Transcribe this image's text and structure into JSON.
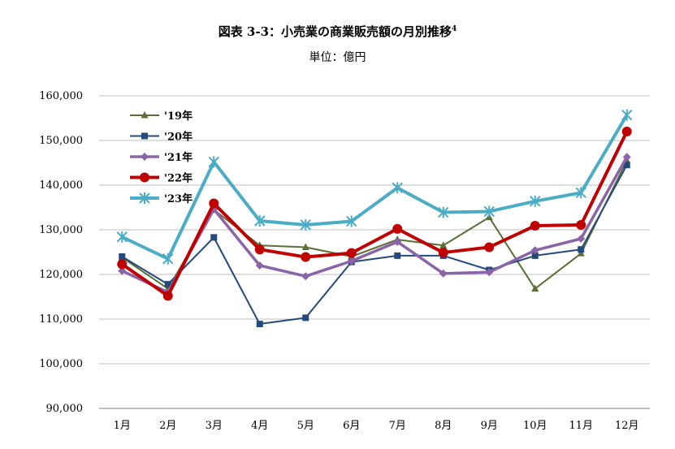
{
  "title": "図表 3-3：小売業の商業販売額の月別推移",
  "title_footnote": "4",
  "subtitle": "単位：億円",
  "chart_data": {
    "type": "line",
    "title": "図表 3-3：小売業の商業販売額の月別推移",
    "unit": "単位：億円",
    "categories": [
      "1月",
      "2月",
      "3月",
      "4月",
      "5月",
      "6月",
      "7月",
      "8月",
      "9月",
      "10月",
      "11月",
      "12月"
    ],
    "ylim": [
      90000,
      160000
    ],
    "yticks": [
      90000,
      100000,
      110000,
      120000,
      130000,
      140000,
      150000,
      160000
    ],
    "ytick_labels": [
      "90,000",
      "100,000",
      "110,000",
      "120,000",
      "130,000",
      "140,000",
      "150,000",
      "160,000"
    ],
    "grid": true,
    "legend_position": "top-left",
    "series": [
      {
        "name": "'19年",
        "color": "#5a6e35",
        "marker": "triangle",
        "values": [
          123800,
          116800,
          134500,
          126500,
          126100,
          124000,
          127800,
          126500,
          132800,
          116800,
          124700,
          145500
        ]
      },
      {
        "name": "'20年",
        "color": "#244a7c",
        "marker": "square",
        "values": [
          124000,
          117800,
          128300,
          108900,
          110300,
          122800,
          124200,
          124200,
          121000,
          124200,
          125600,
          144500
        ]
      },
      {
        "name": "'21年",
        "color": "#8a63a8",
        "marker": "diamond",
        "values": [
          120800,
          116000,
          134600,
          122000,
          119600,
          123000,
          127300,
          120200,
          120500,
          125400,
          128000,
          146300
        ]
      },
      {
        "name": "'22年",
        "color": "#c00000",
        "marker": "circle",
        "values": [
          122300,
          115200,
          135900,
          125600,
          123900,
          124800,
          130200,
          124900,
          126100,
          130900,
          131100,
          152000
        ]
      },
      {
        "name": "'23年",
        "color": "#4bacc6",
        "marker": "asterisk",
        "values": [
          128400,
          123500,
          145200,
          132000,
          131100,
          131900,
          139400,
          133900,
          134100,
          136400,
          138300,
          155700
        ]
      }
    ]
  }
}
